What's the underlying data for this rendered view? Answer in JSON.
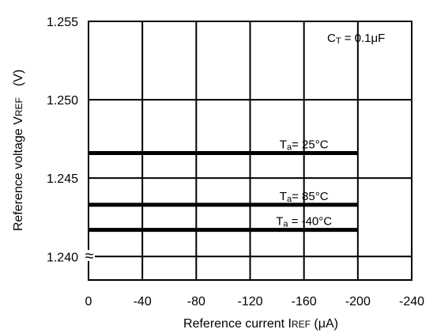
{
  "chart_data": {
    "type": "line",
    "xlabel": {
      "main": "Reference current I",
      "sub": "REF",
      "unit": " (μA)"
    },
    "ylabel": {
      "main": "Reference voltage V",
      "sub": "REF",
      "unit": "(V)"
    },
    "x_ticks": [
      "0",
      "-40",
      "-80",
      "-120",
      "-160",
      "-200",
      "-240"
    ],
    "y_ticks": [
      "1.255",
      "1.250",
      "1.245",
      "1.240"
    ],
    "xlim": [
      0,
      -240
    ],
    "ylim": [
      1.2385,
      1.255
    ],
    "grid": true,
    "axis_break": "≈",
    "condition": {
      "main": "C",
      "sub": "T",
      "rest": " = 0.1μF"
    },
    "series": [
      {
        "label_main": "T",
        "label_sub": "a",
        "label_rest": "= 25°C",
        "x": [
          0,
          -200
        ],
        "y": [
          1.2466,
          1.2466
        ]
      },
      {
        "label_main": "T",
        "label_sub": "a",
        "label_rest": "= 85°C",
        "x": [
          0,
          -200
        ],
        "y": [
          1.2433,
          1.2433
        ]
      },
      {
        "label_main": "T",
        "label_sub": "a",
        "label_rest": " = -40°C",
        "x": [
          0,
          -200
        ],
        "y": [
          1.2417,
          1.2417
        ]
      }
    ]
  }
}
